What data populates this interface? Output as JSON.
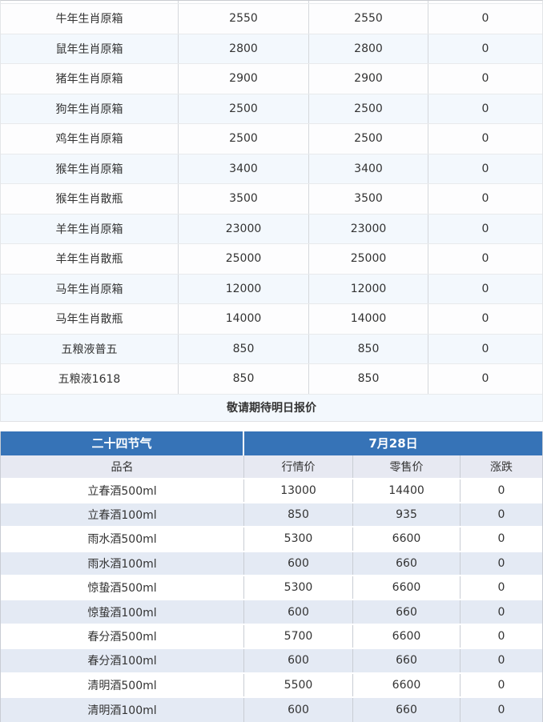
{
  "colors": {
    "accent_header_bg": "#3673b7",
    "table1_alt_row": "#f3f8fd",
    "table2_alt_row": "#e4eaf4",
    "subheader_bg": "#e7e9f2"
  },
  "table1": {
    "rows": [
      {
        "name": "牛年生肖原箱",
        "market": "2550",
        "retail": "2550",
        "change": "0"
      },
      {
        "name": "鼠年生肖原箱",
        "market": "2800",
        "retail": "2800",
        "change": "0"
      },
      {
        "name": "猪年生肖原箱",
        "market": "2900",
        "retail": "2900",
        "change": "0"
      },
      {
        "name": "狗年生肖原箱",
        "market": "2500",
        "retail": "2500",
        "change": "0"
      },
      {
        "name": "鸡年生肖原箱",
        "market": "2500",
        "retail": "2500",
        "change": "0"
      },
      {
        "name": "猴年生肖原箱",
        "market": "3400",
        "retail": "3400",
        "change": "0"
      },
      {
        "name": "猴年生肖散瓶",
        "market": "3500",
        "retail": "3500",
        "change": "0"
      },
      {
        "name": "羊年生肖原箱",
        "market": "23000",
        "retail": "23000",
        "change": "0"
      },
      {
        "name": "羊年生肖散瓶",
        "market": "25000",
        "retail": "25000",
        "change": "0"
      },
      {
        "name": "马年生肖原箱",
        "market": "12000",
        "retail": "12000",
        "change": "0"
      },
      {
        "name": "马年生肖散瓶",
        "market": "14000",
        "retail": "14000",
        "change": "0"
      },
      {
        "name": "五粮液普五",
        "market": "850",
        "retail": "850",
        "change": "0"
      },
      {
        "name": "五粮液1618",
        "market": "850",
        "retail": "850",
        "change": "0"
      }
    ],
    "footer_note": "敬请期待明日报价"
  },
  "table2": {
    "title": "二十四节气",
    "date": "7月28日",
    "columns": [
      "品名",
      "行情价",
      "零售价",
      "涨跌"
    ],
    "rows": [
      {
        "name": "立春酒500ml",
        "market": "13000",
        "retail": "14400",
        "change": "0"
      },
      {
        "name": "立春酒100ml",
        "market": "850",
        "retail": "935",
        "change": "0"
      },
      {
        "name": "雨水酒500ml",
        "market": "5300",
        "retail": "6600",
        "change": "0"
      },
      {
        "name": "雨水酒100ml",
        "market": "600",
        "retail": "660",
        "change": "0"
      },
      {
        "name": "惊蛰酒500ml",
        "market": "5300",
        "retail": "6600",
        "change": "0"
      },
      {
        "name": "惊蛰酒100ml",
        "market": "600",
        "retail": "660",
        "change": "0"
      },
      {
        "name": "春分酒500ml",
        "market": "5700",
        "retail": "6600",
        "change": "0"
      },
      {
        "name": "春分酒100ml",
        "market": "600",
        "retail": "660",
        "change": "0"
      },
      {
        "name": "清明酒500ml",
        "market": "5500",
        "retail": "6600",
        "change": "0"
      },
      {
        "name": "清明酒100ml",
        "market": "600",
        "retail": "660",
        "change": "0"
      }
    ]
  }
}
